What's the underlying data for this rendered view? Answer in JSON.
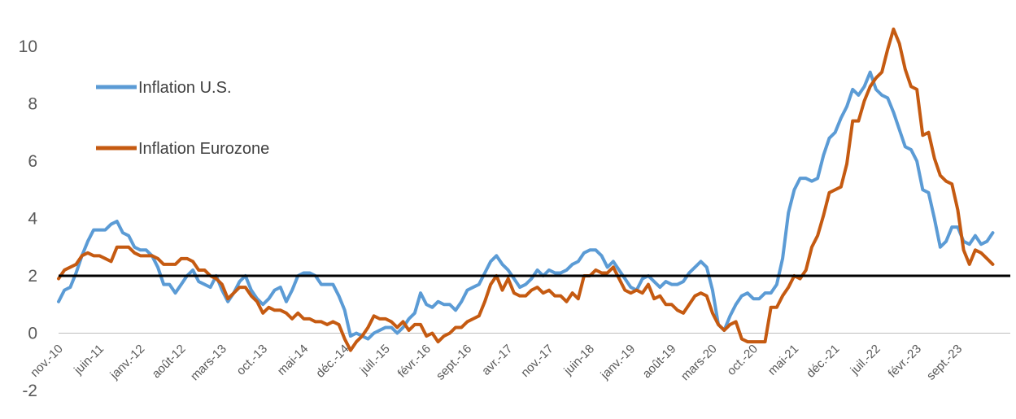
{
  "chart_data": {
    "type": "line",
    "title": "",
    "xlabel": "",
    "ylabel": "",
    "ylim": [
      -2,
      10
    ],
    "yticks": [
      "-2",
      "0",
      "2",
      "4",
      "6",
      "8",
      "10"
    ],
    "ytick_values": [
      -2,
      0,
      2,
      4,
      6,
      8,
      10
    ],
    "x_tick_labels": [
      "nov.-10",
      "juin-11",
      "janv.-12",
      "août-12",
      "mars-13",
      "oct.-13",
      "mai-14",
      "déc.-14",
      "juil.-15",
      "févr.-16",
      "sept.-16",
      "avr.-17",
      "nov.-17",
      "juin-18",
      "janv.-19",
      "août-19",
      "mars-20",
      "oct.-20",
      "mai-21",
      "déc.-21",
      "juil.-22",
      "févr.-23",
      "sept.-23"
    ],
    "x_tick_months": [
      0,
      7,
      14,
      21,
      28,
      35,
      42,
      49,
      56,
      63,
      70,
      77,
      84,
      91,
      98,
      105,
      112,
      119,
      126,
      133,
      140,
      147,
      154
    ],
    "x_range_months": [
      0,
      163
    ],
    "reference_line": 2,
    "grid": false,
    "legend_position": "upper-left",
    "series": [
      {
        "name": "Inflation U.S.",
        "color": "#5B9BD5",
        "values": [
          1.1,
          1.5,
          1.6,
          2.1,
          2.7,
          3.2,
          3.6,
          3.6,
          3.6,
          3.8,
          3.9,
          3.5,
          3.4,
          3.0,
          2.9,
          2.9,
          2.7,
          2.3,
          1.7,
          1.7,
          1.4,
          1.7,
          2.0,
          2.2,
          1.8,
          1.7,
          1.6,
          2.0,
          1.5,
          1.1,
          1.4,
          1.8,
          2.0,
          1.5,
          1.2,
          1.0,
          1.2,
          1.5,
          1.6,
          1.1,
          1.5,
          2.0,
          2.1,
          2.1,
          2.0,
          1.7,
          1.7,
          1.7,
          1.3,
          0.8,
          -0.1,
          0.0,
          -0.1,
          -0.2,
          0.0,
          0.1,
          0.2,
          0.2,
          0.0,
          0.2,
          0.5,
          0.7,
          1.4,
          1.0,
          0.9,
          1.1,
          1.0,
          1.0,
          0.8,
          1.1,
          1.5,
          1.6,
          1.7,
          2.1,
          2.5,
          2.7,
          2.4,
          2.2,
          1.9,
          1.6,
          1.7,
          1.9,
          2.2,
          2.0,
          2.2,
          2.1,
          2.1,
          2.2,
          2.4,
          2.5,
          2.8,
          2.9,
          2.9,
          2.7,
          2.3,
          2.5,
          2.2,
          1.9,
          1.6,
          1.5,
          1.9,
          2.0,
          1.8,
          1.6,
          1.8,
          1.7,
          1.7,
          1.8,
          2.1,
          2.3,
          2.5,
          2.3,
          1.5,
          0.3,
          0.1,
          0.6,
          1.0,
          1.3,
          1.4,
          1.2,
          1.2,
          1.4,
          1.4,
          1.7,
          2.6,
          4.2,
          5.0,
          5.4,
          5.4,
          5.3,
          5.4,
          6.2,
          6.8,
          7.0,
          7.5,
          7.9,
          8.5,
          8.3,
          8.6,
          9.1,
          8.5,
          8.3,
          8.2,
          7.7,
          7.1,
          6.5,
          6.4,
          6.0,
          5.0,
          4.9,
          4.0,
          3.0,
          3.2,
          3.7,
          3.7,
          3.2,
          3.1,
          3.4,
          3.1,
          3.2,
          3.5
        ]
      },
      {
        "name": "Inflation Eurozone",
        "color": "#C55A11",
        "values": [
          1.9,
          2.2,
          2.3,
          2.4,
          2.7,
          2.8,
          2.7,
          2.7,
          2.6,
          2.5,
          3.0,
          3.0,
          3.0,
          2.8,
          2.7,
          2.7,
          2.7,
          2.6,
          2.4,
          2.4,
          2.4,
          2.6,
          2.6,
          2.5,
          2.2,
          2.2,
          2.0,
          1.9,
          1.7,
          1.2,
          1.4,
          1.6,
          1.6,
          1.3,
          1.1,
          0.7,
          0.9,
          0.8,
          0.8,
          0.7,
          0.5,
          0.7,
          0.5,
          0.5,
          0.4,
          0.4,
          0.3,
          0.4,
          0.3,
          -0.2,
          -0.6,
          -0.3,
          -0.1,
          0.2,
          0.6,
          0.5,
          0.5,
          0.4,
          0.2,
          0.4,
          0.1,
          0.3,
          0.3,
          -0.1,
          0.0,
          -0.3,
          -0.1,
          0.0,
          0.2,
          0.2,
          0.4,
          0.5,
          0.6,
          1.1,
          1.7,
          2.0,
          1.5,
          1.9,
          1.4,
          1.3,
          1.3,
          1.5,
          1.6,
          1.4,
          1.5,
          1.3,
          1.3,
          1.1,
          1.4,
          1.2,
          2.0,
          2.0,
          2.2,
          2.1,
          2.1,
          2.3,
          1.9,
          1.5,
          1.4,
          1.5,
          1.4,
          1.7,
          1.2,
          1.3,
          1.0,
          1.0,
          0.8,
          0.7,
          1.0,
          1.3,
          1.4,
          1.3,
          0.7,
          0.3,
          0.1,
          0.3,
          0.4,
          -0.2,
          -0.3,
          -0.3,
          -0.3,
          -0.3,
          0.9,
          0.9,
          1.3,
          1.6,
          2.0,
          1.9,
          2.2,
          3.0,
          3.4,
          4.1,
          4.9,
          5.0,
          5.1,
          5.9,
          7.4,
          7.4,
          8.1,
          8.6,
          8.9,
          9.1,
          9.9,
          10.6,
          10.1,
          9.2,
          8.6,
          8.5,
          6.9,
          7.0,
          6.1,
          5.5,
          5.3,
          5.2,
          4.3,
          2.9,
          2.4,
          2.9,
          2.8,
          2.6,
          2.4
        ]
      }
    ]
  }
}
